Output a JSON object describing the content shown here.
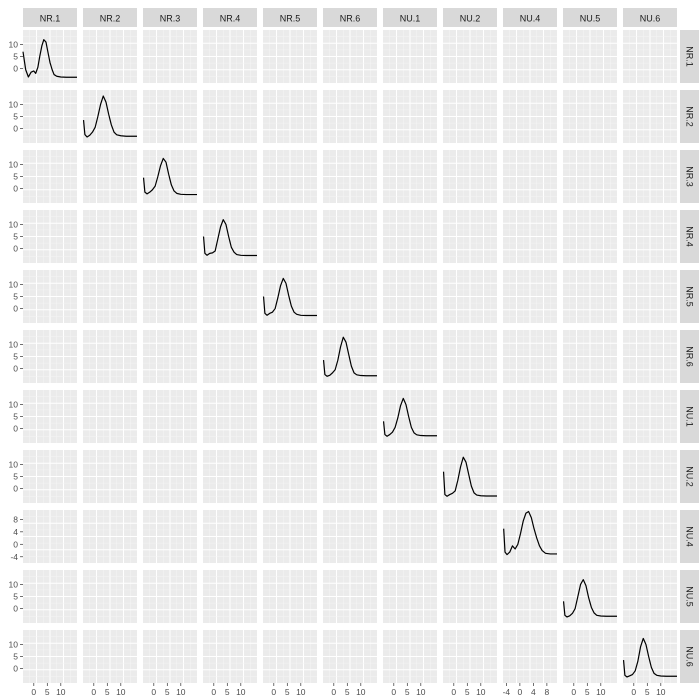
{
  "chart_data": {
    "type": "line",
    "layout": "scatterplot-matrix",
    "title": "",
    "xlabel": "",
    "ylabel": "",
    "grid": true,
    "variables": [
      "NR.1",
      "NR.2",
      "NR.3",
      "NR.4",
      "NR.5",
      "NR.6",
      "NU.1",
      "NU.2",
      "NU.4",
      "NU.5",
      "NU.6"
    ],
    "panels": [
      {
        "name": "NR.1",
        "xlim": [
          -4,
          16
        ],
        "ylim": [
          -6,
          16
        ],
        "x_ticks": [
          0,
          5,
          10
        ],
        "x_tick_labels": [
          "0",
          "5",
          "10"
        ],
        "y_ticks": [
          0,
          5,
          10
        ],
        "y_tick_labels": [
          "0",
          "5",
          "10"
        ],
        "x": [
          -4,
          -3,
          -2,
          -1,
          0,
          0.7,
          1.5,
          2.2,
          3,
          3.7,
          4.5,
          5.2,
          6,
          6.8,
          7.5,
          8.5,
          10,
          12,
          16
        ],
        "y": [
          7,
          -0.5,
          -3.5,
          -1.5,
          -1,
          -2,
          0.5,
          5,
          9.5,
          12,
          11,
          7,
          2.5,
          -0.5,
          -2.5,
          -3.2,
          -3.5,
          -3.6,
          -3.6
        ]
      },
      {
        "name": "NR.2",
        "xlim": [
          -4,
          16
        ],
        "ylim": [
          -6,
          16
        ],
        "x_ticks": [
          0,
          5,
          10
        ],
        "x_tick_labels": [
          "0",
          "5",
          "10"
        ],
        "y_ticks": [
          0,
          5,
          10
        ],
        "y_tick_labels": [
          "0",
          "5",
          "10"
        ],
        "x": [
          -3.8,
          -3.3,
          -2.5,
          -1.5,
          -0.5,
          0.5,
          1.5,
          2.5,
          3.5,
          4.5,
          5.5,
          6.5,
          7.5,
          8.5,
          10,
          12,
          16
        ],
        "y": [
          3.5,
          -2.5,
          -3.5,
          -2.8,
          -1.5,
          0.5,
          5,
          10,
          13.5,
          11,
          6,
          1.5,
          -1.5,
          -2.6,
          -3,
          -3.2,
          -3.2
        ]
      },
      {
        "name": "NR.3",
        "xlim": [
          -4,
          16
        ],
        "ylim": [
          -6,
          16
        ],
        "x_ticks": [
          0,
          5,
          10
        ],
        "x_tick_labels": [
          "0",
          "5",
          "10"
        ],
        "y_ticks": [
          0,
          5,
          10
        ],
        "y_tick_labels": [
          "0",
          "5",
          "10"
        ],
        "x": [
          -3.8,
          -3.3,
          -2.5,
          -1.5,
          -0.5,
          0.5,
          1.5,
          2.5,
          3.5,
          4.5,
          5.5,
          6.5,
          7.5,
          8.5,
          10,
          12,
          16
        ],
        "y": [
          4.5,
          -1.5,
          -2.2,
          -1.5,
          -0.5,
          1,
          5,
          9.5,
          12.5,
          11,
          6,
          1.5,
          -1,
          -2,
          -2.4,
          -2.5,
          -2.5
        ]
      },
      {
        "name": "NR.4",
        "xlim": [
          -4,
          16
        ],
        "ylim": [
          -6,
          16
        ],
        "x_ticks": [
          0,
          5,
          10
        ],
        "x_tick_labels": [
          "0",
          "5",
          "10"
        ],
        "y_ticks": [
          0,
          5,
          10
        ],
        "y_tick_labels": [
          "0",
          "5",
          "10"
        ],
        "x": [
          -3.8,
          -3.3,
          -2.5,
          -1.5,
          -0.5,
          0.5,
          1.5,
          2.5,
          3.5,
          4.5,
          5.5,
          6.5,
          7.5,
          8.5,
          10,
          12,
          16
        ],
        "y": [
          5,
          -2,
          -2.8,
          -2,
          -1.8,
          -1,
          4,
          9,
          12,
          10,
          5,
          0.5,
          -1.5,
          -2.5,
          -2.8,
          -2.9,
          -2.9
        ]
      },
      {
        "name": "NR.5",
        "xlim": [
          -4,
          16
        ],
        "ylim": [
          -6,
          16
        ],
        "x_ticks": [
          0,
          5,
          10
        ],
        "x_tick_labels": [
          "0",
          "5",
          "10"
        ],
        "y_ticks": [
          0,
          5,
          10
        ],
        "y_tick_labels": [
          "0",
          "5",
          "10"
        ],
        "x": [
          -3.8,
          -3.3,
          -2.5,
          -1.5,
          -0.5,
          0.5,
          1.5,
          2.5,
          3.5,
          4.5,
          5.5,
          6.5,
          7.5,
          8.5,
          10,
          12,
          16
        ],
        "y": [
          5,
          -2,
          -2.8,
          -2,
          -1.5,
          0,
          4.5,
          9.5,
          12.5,
          10.5,
          5.5,
          1,
          -1.5,
          -2.4,
          -2.8,
          -2.9,
          -2.9
        ]
      },
      {
        "name": "NR.6",
        "xlim": [
          -4,
          16
        ],
        "ylim": [
          -6,
          16
        ],
        "x_ticks": [
          0,
          5,
          10
        ],
        "x_tick_labels": [
          "0",
          "5",
          "10"
        ],
        "y_ticks": [
          0,
          5,
          10
        ],
        "y_tick_labels": [
          "0",
          "5",
          "10"
        ],
        "x": [
          -3.8,
          -3.3,
          -2.5,
          -1.5,
          -0.5,
          0.5,
          1.5,
          2.5,
          3.5,
          4.5,
          5.5,
          6.5,
          7.5,
          8.5,
          10,
          12,
          16
        ],
        "y": [
          3.5,
          -2.5,
          -3.2,
          -2.8,
          -1.8,
          -0.5,
          3.5,
          9,
          13,
          11,
          6,
          1,
          -1.8,
          -2.6,
          -2.9,
          -3,
          -3
        ]
      },
      {
        "name": "NU.1",
        "xlim": [
          -4,
          16
        ],
        "ylim": [
          -6,
          16
        ],
        "x_ticks": [
          0,
          5,
          10
        ],
        "x_tick_labels": [
          "0",
          "5",
          "10"
        ],
        "y_ticks": [
          0,
          5,
          10
        ],
        "y_tick_labels": [
          "0",
          "5",
          "10"
        ],
        "x": [
          -3.8,
          -3.3,
          -2.5,
          -1.5,
          -0.5,
          0.5,
          1.5,
          2.5,
          3.5,
          4.5,
          5.5,
          6.5,
          7.5,
          8.5,
          10,
          12,
          16
        ],
        "y": [
          3,
          -2.5,
          -3.2,
          -2.5,
          -1.5,
          0.5,
          4.5,
          9.5,
          12.5,
          10,
          5,
          0.5,
          -1.8,
          -2.6,
          -2.9,
          -3,
          -3
        ]
      },
      {
        "name": "NU.2",
        "xlim": [
          -4,
          16
        ],
        "ylim": [
          -6,
          16
        ],
        "x_ticks": [
          0,
          5,
          10
        ],
        "x_tick_labels": [
          "0",
          "5",
          "10"
        ],
        "y_ticks": [
          0,
          5,
          10
        ],
        "y_tick_labels": [
          "0",
          "5",
          "10"
        ],
        "x": [
          -3.8,
          -3.3,
          -2.5,
          -1.5,
          -0.5,
          0.5,
          1.5,
          2.5,
          3.5,
          4.5,
          5.5,
          6.5,
          7.5,
          8.5,
          10,
          12,
          16
        ],
        "y": [
          7,
          -2.5,
          -3.2,
          -2.5,
          -2,
          -1,
          3.5,
          9,
          13,
          11,
          6,
          1,
          -1.8,
          -2.7,
          -3,
          -3.1,
          -3.1
        ]
      },
      {
        "name": "NU.4",
        "xlim": [
          -5,
          11
        ],
        "ylim": [
          -6,
          11
        ],
        "x_ticks": [
          -4,
          0,
          4,
          8
        ],
        "x_tick_labels": [
          "-4",
          "0",
          "4",
          "8"
        ],
        "y_ticks": [
          -4,
          0,
          4,
          8
        ],
        "y_tick_labels": [
          "-4",
          "0",
          "4",
          "8"
        ],
        "x": [
          -4.8,
          -4.4,
          -3.8,
          -3,
          -2.2,
          -1.4,
          -0.6,
          0.2,
          1,
          1.8,
          2.6,
          3.4,
          4.2,
          5,
          5.8,
          6.6,
          7.6,
          9,
          11
        ],
        "y": [
          5,
          -2.5,
          -3.3,
          -2.5,
          -0.5,
          -1.5,
          0,
          3.5,
          7.5,
          10,
          10.5,
          8.5,
          5,
          2,
          -0.5,
          -2,
          -2.9,
          -3.1,
          -3.1
        ]
      },
      {
        "name": "NU.5",
        "xlim": [
          -4,
          16
        ],
        "ylim": [
          -6,
          16
        ],
        "x_ticks": [
          0,
          5,
          10
        ],
        "x_tick_labels": [
          "0",
          "5",
          "10"
        ],
        "y_ticks": [
          0,
          5,
          10
        ],
        "y_tick_labels": [
          "0",
          "5",
          "10"
        ],
        "x": [
          -3.8,
          -3.3,
          -2.5,
          -1.5,
          -0.5,
          0.5,
          1.5,
          2.5,
          3.5,
          4.5,
          5.5,
          6.5,
          7.5,
          8.5,
          10,
          12,
          16
        ],
        "y": [
          3,
          -2.8,
          -3.5,
          -3,
          -2,
          0,
          5,
          10,
          12,
          9.5,
          4.5,
          0.5,
          -1.8,
          -2.8,
          -3.1,
          -3.2,
          -3.2
        ]
      },
      {
        "name": "NU.6",
        "xlim": [
          -4,
          16
        ],
        "ylim": [
          -6,
          16
        ],
        "x_ticks": [
          0,
          5,
          10
        ],
        "x_tick_labels": [
          "0",
          "5",
          "10"
        ],
        "y_ticks": [
          0,
          5,
          10
        ],
        "y_tick_labels": [
          "0",
          "5",
          "10"
        ],
        "x": [
          -3.8,
          -3.3,
          -2.5,
          -1.5,
          -0.5,
          0.5,
          1.5,
          2.5,
          3.5,
          4.5,
          5.5,
          6.5,
          7.5,
          8.5,
          10,
          12,
          16
        ],
        "y": [
          3.5,
          -2.8,
          -3.5,
          -3,
          -2.5,
          -1,
          3,
          9,
          12.5,
          10,
          5,
          0.5,
          -2,
          -2.8,
          -3.1,
          -3.2,
          -3.2
        ]
      }
    ]
  },
  "colors": {
    "panel_background": "#ebebeb",
    "grid_major": "#ffffff",
    "grid_minor": "#f5f5f5",
    "strip_background": "#d9d9d9",
    "strip_text": "#1a1a1a",
    "tick_text": "#4d4d4d",
    "tick_mark": "#333333",
    "line": "#000000"
  }
}
